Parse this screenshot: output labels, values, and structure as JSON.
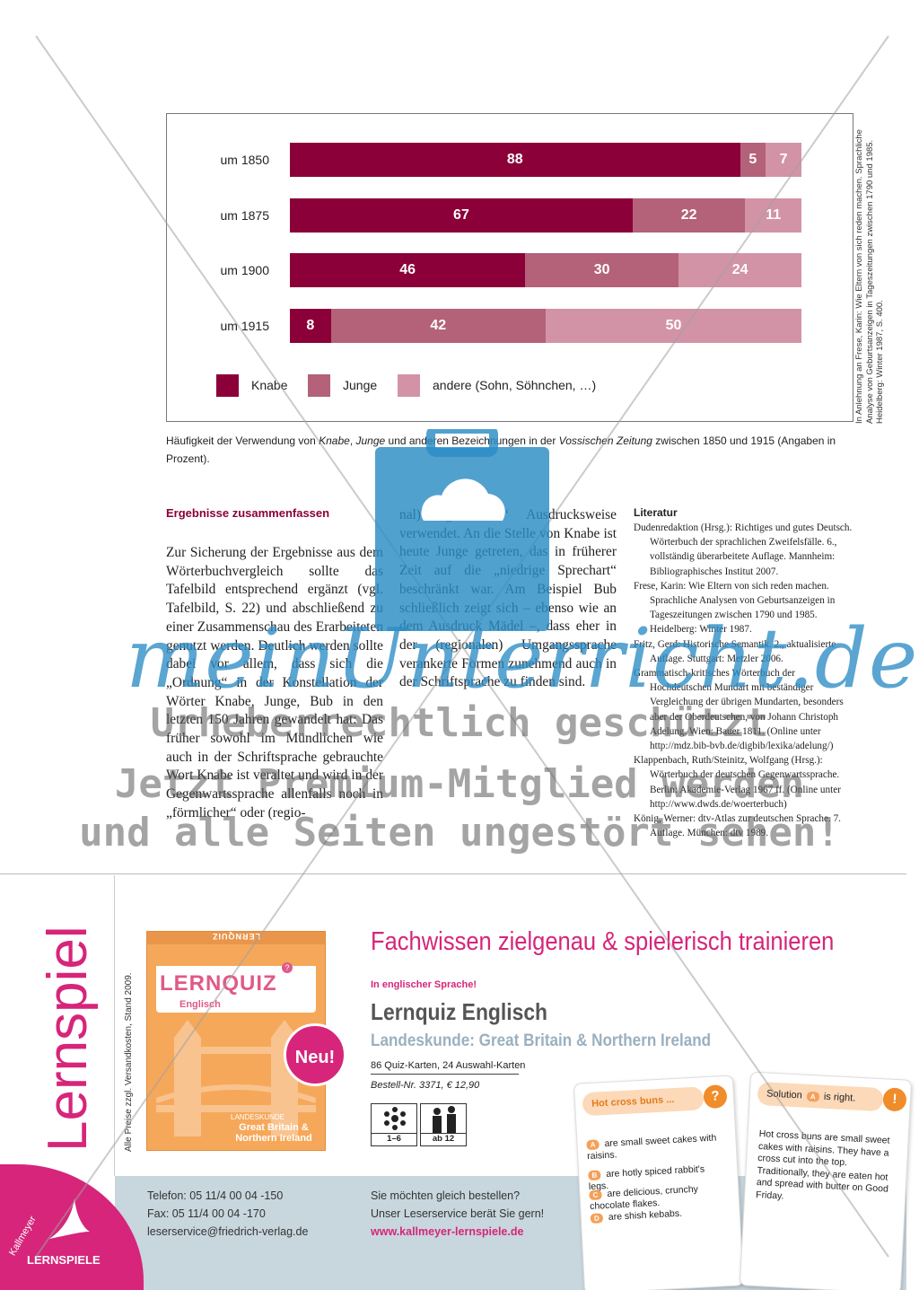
{
  "chart_data": {
    "type": "bar",
    "stacked": true,
    "orientation": "horizontal",
    "categories": [
      "um 1850",
      "um 1875",
      "um 1900",
      "um 1915"
    ],
    "series": [
      {
        "name": "Knabe",
        "values": [
          88,
          67,
          46,
          8
        ],
        "color": "#8b0038"
      },
      {
        "name": "Junge",
        "values": [
          5,
          22,
          30,
          42
        ],
        "color": "#b4617a"
      },
      {
        "name": "andere (Sohn, Söhnchen, …)",
        "values": [
          7,
          11,
          24,
          50
        ],
        "color": "#d393a6"
      }
    ],
    "title": "",
    "xlabel": "",
    "ylabel": "",
    "xlim": [
      0,
      100
    ],
    "legend_position": "bottom",
    "grid": false
  },
  "side_note": "In Anlehnung an Frese, Karin: Wie Eltern von sich reden machen. Sprachliche Analyse von Geburtsanzeigen in Tageszeitungen zwischen 1790 und 1985. Heidelberg: Winter 1987, S. 400.",
  "caption": "Häufigkeit der Verwendung von Knabe, Junge und anderen Bezeichnungen in der Vossischen Zeitung zwischen 1850 und 1915 (Angaben in Prozent).",
  "section": {
    "heading": "Ergebnisse zusammenfassen",
    "col1": "Zur Sicherung der Ergebnisse aus dem Wörterbuchvergleich sollte das Tafelbild entsprechend ergänzt (vgl. Tafelbild, S. 22) und abschließend zu einer Zusammenschau des Erarbeiteten genutzt werden. Deutlich werden sollte dabei vor allem, dass sich die „Ordnung“ in der Konstellation der Wörter Knabe, Junge, Bub in den letzten 150 Jahren gewandelt hat: Das früher sowohl im Mündlichen wie auch in der Schriftsprache gebrauchte Wort Knabe ist veraltet und wird in der Gegenwartssprache allenfalls noch in „förmlicher“ oder (regio-",
    "col2": "nal) „gehobener“ Ausdrucksweise verwendet. An die Stelle von Knabe ist heute Junge getreten, das in früherer Zeit auf die „niedrige Sprechart“ beschränkt war. Am Beispiel Bub schließlich zeigt sich – ebenso wie an dem Ausdruck Mädel –, dass eher in der (regionalen) Umgangssprache verankerte Formen zunehmend auch in der Schriftsprache zu finden sind."
  },
  "literature": {
    "title": "Literatur",
    "entries": [
      "Dudenredaktion (Hrsg.): Richtiges und gutes Deutsch. Wörterbuch der sprachlichen Zweifelsfälle. 6., vollständig überarbeitete Auflage. Mannheim: Bibliographisches Institut 2007.",
      "Frese, Karin: Wie Eltern von sich reden machen. Sprachliche Analysen von Geburtsanzeigen in Tageszeitungen zwischen 1790 und 1985. Heidelberg: Winter 1987.",
      "Fritz, Gerd: Historische Semantik. 2., aktualisierte Auflage. Stuttgart: Metzler 2006.",
      "Grammatisch-kritisches Wörterbuch der Hochdeutschen Mundart mit beständiger Vergleichung der übrigen Mundarten, besonders aber der Oberdeutschen, von Johann Christoph Adelung. Wien: Bauer 1811. (Online unter http://mdz.bib-bvb.de/digbib/lexika/adelung/)",
      "Klappenbach, Ruth/Steinitz, Wolfgang (Hrsg.): Wörterbuch der deutschen Gegenwartssprache. Berlin: Akademie-Verlag 1967 ff. (Online unter http://www.dwds.de/woerterbuch)",
      "König, Werner: dtv-Atlas zur deutschen Sprache. 7. Auflage. München: dtv 1989."
    ]
  },
  "watermark": {
    "brand": "meinUnterricht.de",
    "line1": "Urheberrechtlich geschützt",
    "line2": "Jetzt Premium-Mitglied werden",
    "line3": "und alle Seiten ungestört sehen!"
  },
  "ad": {
    "side_word": "Lernspiel",
    "price_note": "Alle Preise zzgl. Versandkosten, Stand 2009.",
    "box_top": "LERNQUIZ",
    "box_title": "LERNQUIZ",
    "box_subtitle": "Englisch",
    "box_label_small": "LANDESKUNDE",
    "box_label": "Great Britain & Northern Ireland",
    "badge": "Neu!",
    "headline": "Fachwissen zielgenau & spielerisch trainieren",
    "tagline": "In englischer Sprache!",
    "product": "Lernquiz Englisch",
    "subtitle": "Landeskunde: Great Britain & Northern Ireland",
    "cards_info": "86 Quiz-Karten, 24 Auswahl-Karten",
    "order_info": "Bestell-Nr. 3371, € 12,90",
    "players": "1–6",
    "age": "ab 12",
    "card1": {
      "head": "Hot cross buns ...",
      "badge": "?",
      "options": [
        {
          "letter": "A",
          "text": "are small sweet cakes with raisins."
        },
        {
          "letter": "B",
          "text": "are hotly spiced rabbit's legs."
        },
        {
          "letter": "C",
          "text": "are delicious, crunchy chocolate flakes."
        },
        {
          "letter": "D",
          "text": "are shish kebabs."
        }
      ]
    },
    "card2": {
      "head_pre": "Solution",
      "head_letter": "A",
      "head_post": "is right.",
      "badge": "!",
      "body": "Hot cross buns are small sweet cakes with raisins. They have a cross cut into the top. Traditionally, they are eaten hot and spread with butter on Good Friday."
    },
    "contact": {
      "phone": "Telefon: 05 11/4 00 04 -150",
      "fax": "Fax: 05 11/4 00 04 -170",
      "email": "leserservice@friedrich-verlag.de"
    },
    "order_prompt": {
      "line1": "Sie möchten gleich bestellen?",
      "line2": "Unser Leserservice berät Sie gern!",
      "url": "www.kallmeyer-lernspiele.de"
    },
    "logo_top": "Kallmeyer",
    "logo_bottom": "LERNSPIELE"
  }
}
